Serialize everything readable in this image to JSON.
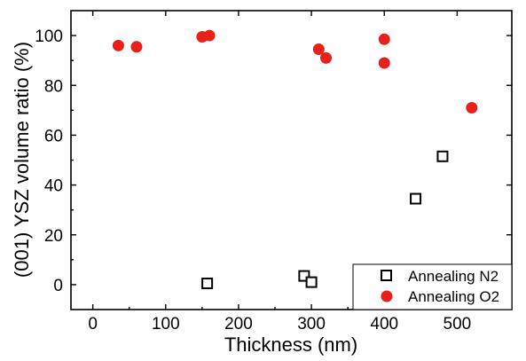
{
  "chart_data": {
    "type": "scatter",
    "xlabel": "Thickness (nm)",
    "ylabel": "(001) YSZ volume ratio (%)",
    "xlim": [
      -30,
      575
    ],
    "ylim": [
      -10,
      110
    ],
    "xticks": [
      0,
      100,
      200,
      300,
      400,
      500
    ],
    "yticks": [
      0,
      20,
      40,
      60,
      80,
      100
    ],
    "legend_position": "bottom-right",
    "series": [
      {
        "name": "Annealing N2",
        "marker": "open-square",
        "color": "#000000",
        "points": [
          {
            "x": 157,
            "y": 0.5
          },
          {
            "x": 290,
            "y": 3.5
          },
          {
            "x": 300,
            "y": 1.0
          },
          {
            "x": 443,
            "y": 34.5
          },
          {
            "x": 480,
            "y": 51.5
          }
        ]
      },
      {
        "name": "Annealing O2",
        "marker": "filled-circle",
        "color": "#e8201a",
        "points": [
          {
            "x": 35,
            "y": 96
          },
          {
            "x": 60,
            "y": 95.5
          },
          {
            "x": 150,
            "y": 99.5
          },
          {
            "x": 160,
            "y": 100
          },
          {
            "x": 310,
            "y": 94.5
          },
          {
            "x": 320,
            "y": 91
          },
          {
            "x": 400,
            "y": 98.5
          },
          {
            "x": 400,
            "y": 89
          },
          {
            "x": 520,
            "y": 71
          }
        ]
      }
    ]
  }
}
